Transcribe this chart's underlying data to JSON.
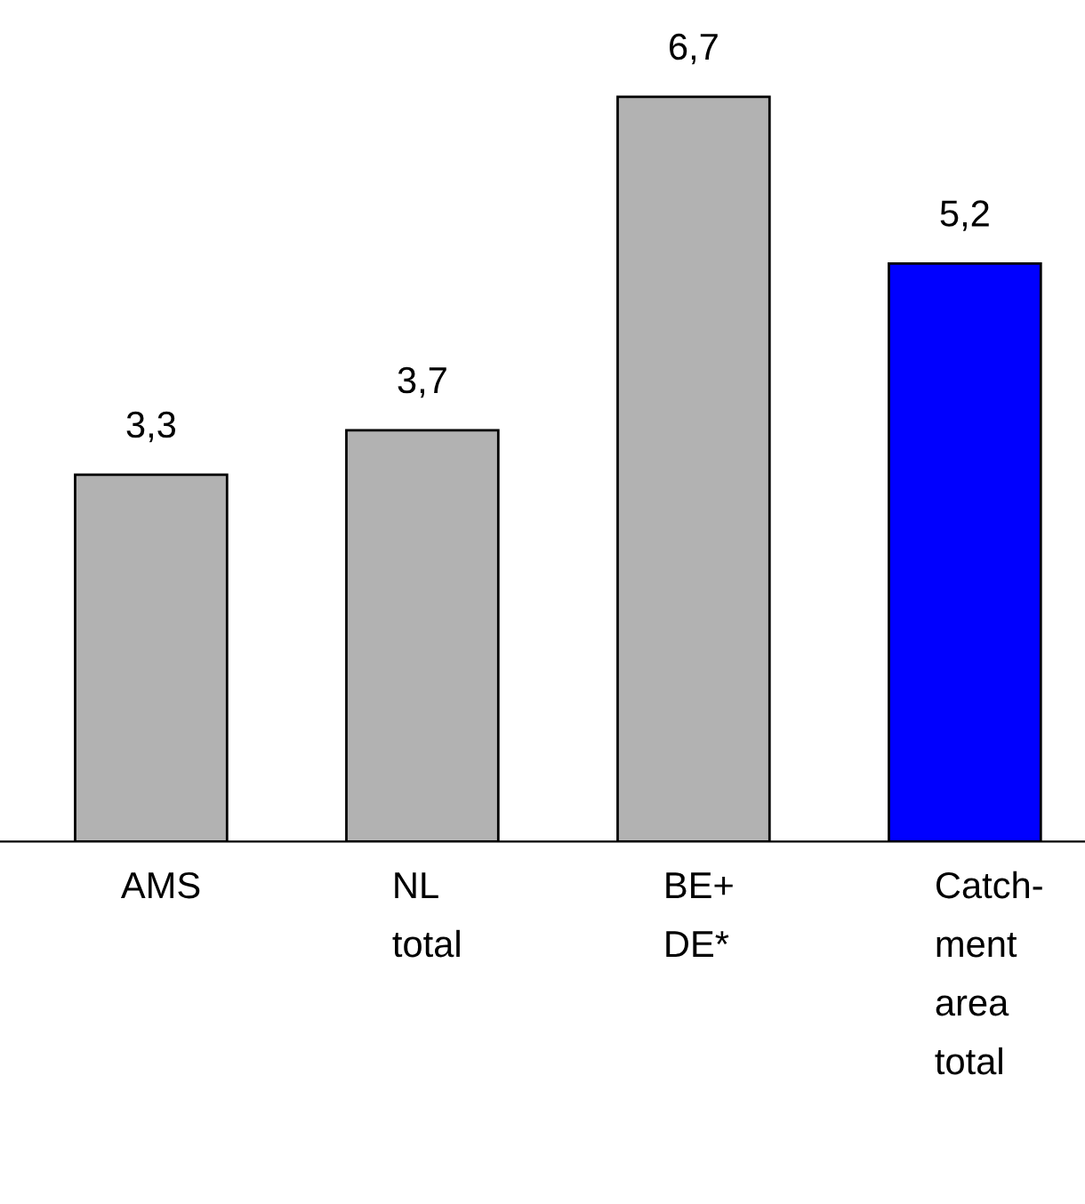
{
  "chart_data": {
    "type": "bar",
    "categories": [
      "AMS",
      "NL\ntotal",
      "BE+\nDE*",
      "Catch-\nment\narea\ntotal"
    ],
    "values": [
      3.3,
      3.7,
      6.7,
      5.2
    ],
    "colors": [
      "#b2b2b2",
      "#b2b2b2",
      "#b2b2b2",
      "#0000ff"
    ],
    "value_labels": [
      "3,3",
      "3,7",
      "6,7",
      "5,2"
    ],
    "grid": false,
    "legend": false,
    "tick_labels": "x"
  }
}
